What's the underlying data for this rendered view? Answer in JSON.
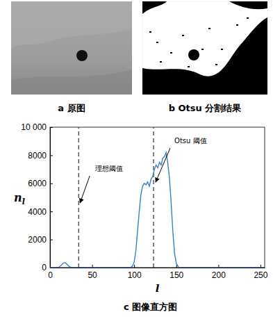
{
  "images": [
    {
      "caption": "a 原图"
    },
    {
      "caption": "b Otsu 分割结果"
    }
  ],
  "chart_data": {
    "type": "line",
    "title": "c 图像直方图",
    "xlabel": "l",
    "ylabel": {
      "base": "n",
      "subscript": "l"
    },
    "x": [
      0,
      10,
      13,
      16,
      18,
      20,
      23,
      26,
      30,
      95,
      98,
      100,
      102,
      104,
      106,
      108,
      110,
      112,
      114,
      116,
      118,
      120,
      122,
      124,
      126,
      128,
      130,
      132,
      134,
      136,
      138,
      140,
      142,
      144,
      146,
      148,
      150,
      153,
      200,
      255
    ],
    "values": [
      0,
      0,
      150,
      330,
      350,
      250,
      60,
      0,
      0,
      0,
      100,
      400,
      1200,
      2600,
      4000,
      5200,
      5800,
      6000,
      5900,
      6100,
      5800,
      6300,
      6500,
      7000,
      7300,
      7100,
      7500,
      7300,
      7800,
      7900,
      8200,
      7400,
      6300,
      4500,
      2500,
      1000,
      300,
      0,
      0,
      0
    ],
    "color": "#3a7dcc",
    "xlim": [
      0,
      255
    ],
    "ylim": [
      0,
      10000
    ],
    "xticks": [
      0,
      50,
      100,
      150,
      200,
      250
    ],
    "yticks": [
      0,
      2000,
      4000,
      6000,
      8000,
      {
        "value": 10000,
        "label": "10 000"
      }
    ],
    "annotations": [
      {
        "x": 34,
        "label": "理想阈值",
        "line_style": "dashed"
      },
      {
        "x": 123,
        "label": "Otsu 阈值",
        "line_style": "dashed"
      }
    ]
  }
}
